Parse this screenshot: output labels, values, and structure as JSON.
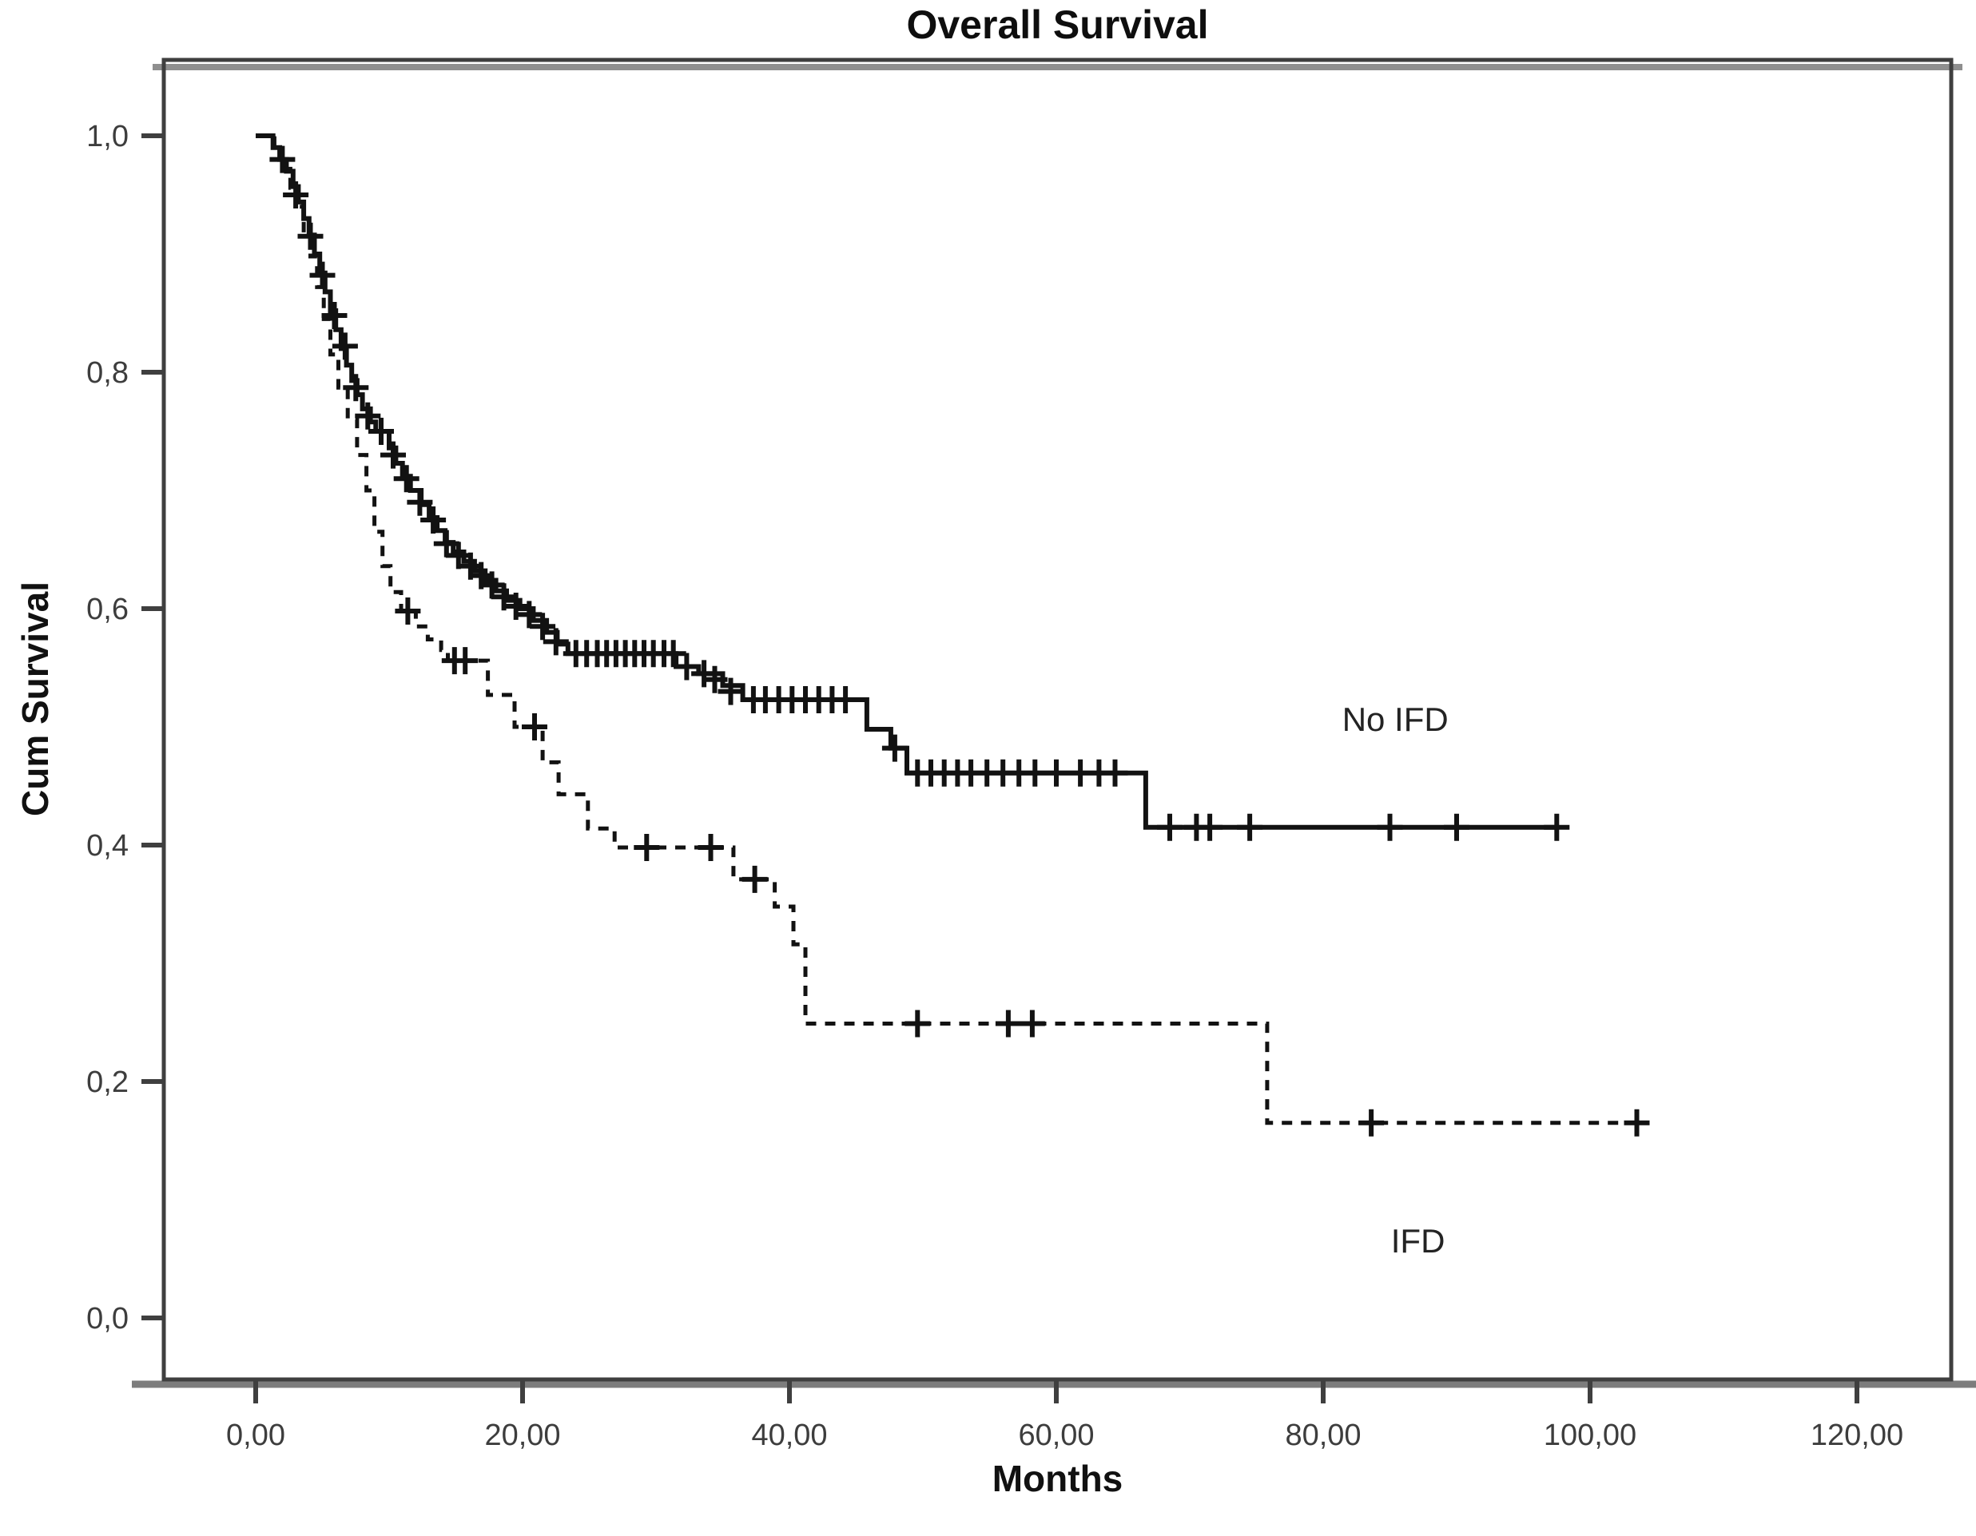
{
  "title": "Overall Survival",
  "chart_data": {
    "type": "line",
    "subtype": "kaplan-meier-step",
    "title": "Overall Survival",
    "xlabel": "Months",
    "ylabel": "Cum Survival",
    "xlim": [
      0,
      120
    ],
    "ylim": [
      0,
      1
    ],
    "grid": false,
    "legend_position": "inline-annotations",
    "line_color": "#121212",
    "x_ticks": [
      {
        "value": 0,
        "label": "0,00"
      },
      {
        "value": 20,
        "label": "20,00"
      },
      {
        "value": 40,
        "label": "40,00"
      },
      {
        "value": 60,
        "label": "60,00"
      },
      {
        "value": 80,
        "label": "80,00"
      },
      {
        "value": 100,
        "label": "100,00"
      },
      {
        "value": 120,
        "label": "120,00"
      }
    ],
    "y_ticks": [
      {
        "value": 1.0,
        "label": "1,0"
      },
      {
        "value": 0.8,
        "label": "0,8"
      },
      {
        "value": 0.6,
        "label": "0,6"
      },
      {
        "value": 0.4,
        "label": "0,4"
      },
      {
        "value": 0.2,
        "label": "0,2"
      },
      {
        "value": 0.0,
        "label": "0,0"
      }
    ],
    "series": [
      {
        "name": "No IFD",
        "style": "solid",
        "steps": [
          [
            0,
            1.0
          ],
          [
            1.3,
            0.99
          ],
          [
            1.8,
            0.98
          ],
          [
            2.3,
            0.97
          ],
          [
            2.8,
            0.957
          ],
          [
            3.2,
            0.944
          ],
          [
            3.6,
            0.93
          ],
          [
            4.0,
            0.916
          ],
          [
            4.4,
            0.9
          ],
          [
            4.8,
            0.884
          ],
          [
            5.2,
            0.868
          ],
          [
            5.6,
            0.852
          ],
          [
            6.0,
            0.836
          ],
          [
            6.4,
            0.82
          ],
          [
            6.8,
            0.806
          ],
          [
            7.2,
            0.793
          ],
          [
            7.6,
            0.781
          ],
          [
            8.0,
            0.769
          ],
          [
            8.6,
            0.758
          ],
          [
            9.0,
            0.75
          ],
          [
            10.0,
            0.736
          ],
          [
            10.5,
            0.723
          ],
          [
            11.0,
            0.712
          ],
          [
            11.6,
            0.7
          ],
          [
            12.4,
            0.688
          ],
          [
            13.0,
            0.677
          ],
          [
            13.6,
            0.666
          ],
          [
            14.2,
            0.656
          ],
          [
            14.8,
            0.648
          ],
          [
            15.6,
            0.64
          ],
          [
            16.4,
            0.632
          ],
          [
            17.2,
            0.624
          ],
          [
            18.0,
            0.615
          ],
          [
            18.8,
            0.607
          ],
          [
            19.8,
            0.6
          ],
          [
            20.8,
            0.59
          ],
          [
            21.8,
            0.58
          ],
          [
            22.6,
            0.57
          ],
          [
            23.4,
            0.562
          ],
          [
            31.5,
            0.551
          ],
          [
            33.2,
            0.545
          ],
          [
            35.0,
            0.535
          ],
          [
            36.5,
            0.523
          ],
          [
            45.8,
            0.498
          ],
          [
            47.6,
            0.482
          ],
          [
            48.8,
            0.461
          ],
          [
            66.7,
            0.415
          ],
          [
            97.5,
            0.415
          ]
        ],
        "censor_marks": [
          [
            2.0,
            0.98
          ],
          [
            3.0,
            0.95
          ],
          [
            4.1,
            0.915
          ],
          [
            5.0,
            0.882
          ],
          [
            5.9,
            0.848
          ],
          [
            6.7,
            0.822
          ],
          [
            7.5,
            0.787
          ],
          [
            8.4,
            0.763
          ],
          [
            9.4,
            0.75
          ],
          [
            10.3,
            0.73
          ],
          [
            11.3,
            0.71
          ],
          [
            12.3,
            0.69
          ],
          [
            13.3,
            0.675
          ],
          [
            14.3,
            0.655
          ],
          [
            15.2,
            0.645
          ],
          [
            16.1,
            0.636
          ],
          [
            16.9,
            0.628
          ],
          [
            17.7,
            0.62
          ],
          [
            18.6,
            0.61
          ],
          [
            19.5,
            0.602
          ],
          [
            20.5,
            0.595
          ],
          [
            21.5,
            0.585
          ],
          [
            22.5,
            0.572
          ],
          [
            24.0,
            0.562
          ],
          [
            24.8,
            0.562
          ],
          [
            25.6,
            0.562
          ],
          [
            26.3,
            0.562
          ],
          [
            27.0,
            0.562
          ],
          [
            27.7,
            0.562
          ],
          [
            28.4,
            0.562
          ],
          [
            29.1,
            0.562
          ],
          [
            29.8,
            0.562
          ],
          [
            30.6,
            0.562
          ],
          [
            31.3,
            0.562
          ],
          [
            32.3,
            0.551
          ],
          [
            33.6,
            0.545
          ],
          [
            34.4,
            0.54
          ],
          [
            35.6,
            0.53
          ],
          [
            37.3,
            0.523
          ],
          [
            38.2,
            0.523
          ],
          [
            39.2,
            0.523
          ],
          [
            40.2,
            0.523
          ],
          [
            41.2,
            0.523
          ],
          [
            42.2,
            0.523
          ],
          [
            43.2,
            0.523
          ],
          [
            44.2,
            0.523
          ],
          [
            47.9,
            0.482
          ],
          [
            49.6,
            0.461
          ],
          [
            50.6,
            0.461
          ],
          [
            51.6,
            0.461
          ],
          [
            52.6,
            0.461
          ],
          [
            53.6,
            0.461
          ],
          [
            54.8,
            0.461
          ],
          [
            56.0,
            0.461
          ],
          [
            57.2,
            0.461
          ],
          [
            58.4,
            0.461
          ],
          [
            60.0,
            0.461
          ],
          [
            61.8,
            0.461
          ],
          [
            63.2,
            0.461
          ],
          [
            64.4,
            0.461
          ],
          [
            68.5,
            0.415
          ],
          [
            70.5,
            0.415
          ],
          [
            71.5,
            0.415
          ],
          [
            74.5,
            0.415
          ],
          [
            85.0,
            0.415
          ],
          [
            90.0,
            0.415
          ],
          [
            97.5,
            0.415
          ]
        ]
      },
      {
        "name": "IFD",
        "style": "dashed",
        "steps": [
          [
            0,
            1.0
          ],
          [
            1.4,
            0.988
          ],
          [
            2.0,
            0.972
          ],
          [
            2.6,
            0.956
          ],
          [
            3.1,
            0.94
          ],
          [
            3.6,
            0.92
          ],
          [
            4.1,
            0.898
          ],
          [
            4.6,
            0.872
          ],
          [
            5.1,
            0.845
          ],
          [
            5.6,
            0.815
          ],
          [
            6.2,
            0.787
          ],
          [
            6.9,
            0.76
          ],
          [
            7.6,
            0.73
          ],
          [
            8.3,
            0.7
          ],
          [
            8.9,
            0.665
          ],
          [
            9.5,
            0.636
          ],
          [
            10.1,
            0.614
          ],
          [
            10.9,
            0.598
          ],
          [
            12.0,
            0.585
          ],
          [
            12.9,
            0.574
          ],
          [
            13.9,
            0.565
          ],
          [
            14.4,
            0.556
          ],
          [
            17.4,
            0.527
          ],
          [
            19.4,
            0.5
          ],
          [
            21.5,
            0.47
          ],
          [
            22.7,
            0.443
          ],
          [
            24.9,
            0.414
          ],
          [
            26.9,
            0.398
          ],
          [
            35.8,
            0.371
          ],
          [
            38.9,
            0.348
          ],
          [
            40.3,
            0.316
          ],
          [
            41.2,
            0.249
          ],
          [
            75.8,
            0.165
          ],
          [
            103.5,
            0.165
          ]
        ],
        "censor_marks": [
          [
            11.4,
            0.598
          ],
          [
            14.9,
            0.556
          ],
          [
            15.7,
            0.556
          ],
          [
            20.9,
            0.5
          ],
          [
            29.3,
            0.398
          ],
          [
            34.1,
            0.398
          ],
          [
            37.4,
            0.371
          ],
          [
            49.6,
            0.249
          ],
          [
            56.4,
            0.249
          ],
          [
            58.2,
            0.249
          ],
          [
            83.6,
            0.165
          ],
          [
            103.5,
            0.165
          ]
        ]
      }
    ],
    "annotations": [
      {
        "text": "No IFD",
        "t": 85.4,
        "s": 0.506,
        "series": "No IFD"
      },
      {
        "text": "IFD",
        "t": 87.1,
        "s": 0.065,
        "series": "IFD"
      }
    ]
  }
}
